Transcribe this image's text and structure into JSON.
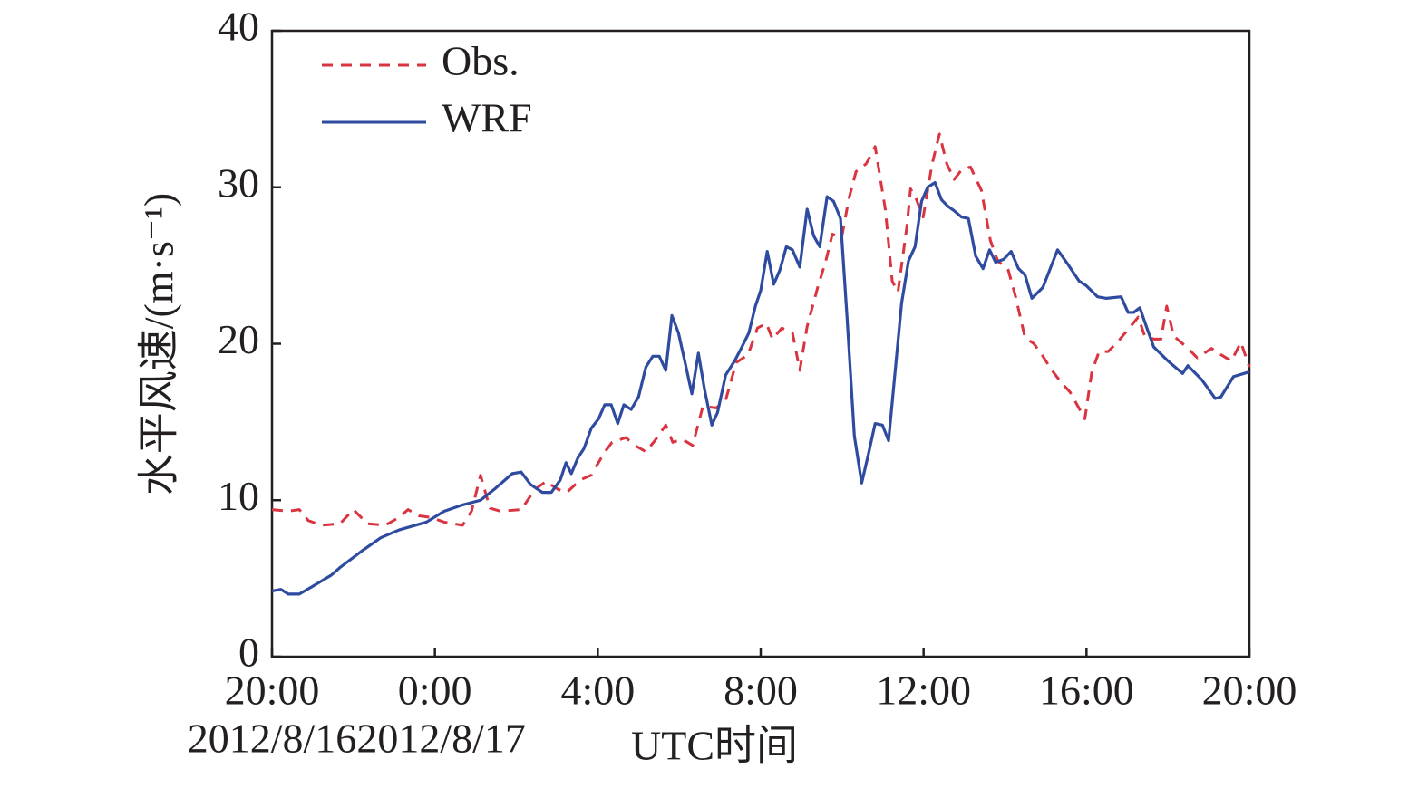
{
  "chart_data": {
    "type": "line",
    "ylabel": "水平风速/(m·s⁻¹)",
    "xlabel": "UTC时间",
    "xlim": [
      0,
      24
    ],
    "xticks": [
      {
        "value": 0,
        "label": "20:00"
      },
      {
        "value": 4,
        "label": "0:00"
      },
      {
        "value": 8,
        "label": "4:00"
      },
      {
        "value": 12,
        "label": "8:00"
      },
      {
        "value": 16,
        "label": "12:00"
      },
      {
        "value": 20,
        "label": "16:00"
      },
      {
        "value": 24,
        "label": "20:00"
      }
    ],
    "xdates": [
      {
        "value": 0,
        "label": "2012/8/16"
      },
      {
        "value": 4,
        "label": "2012/8/17"
      }
    ],
    "ylim": [
      0,
      40
    ],
    "yticks": [
      0,
      10,
      20,
      30,
      40
    ],
    "legend": "upper left",
    "series": [
      {
        "name": "Obs.",
        "color": "#d9343f",
        "dash": true,
        "x": [
          0,
          0.4,
          0.67,
          0.89,
          1.22,
          1.67,
          2.0,
          2.34,
          2.78,
          3.12,
          3.34,
          3.61,
          3.9,
          4.23,
          4.68,
          4.9,
          5.12,
          5.35,
          5.61,
          6.12,
          6.46,
          6.73,
          7.02,
          7.24,
          7.57,
          7.84,
          8.15,
          8.35,
          8.69,
          8.91,
          9.18,
          9.4,
          9.67,
          9.84,
          10.07,
          10.33,
          10.58,
          10.91,
          11.14,
          11.4,
          11.69,
          11.92,
          12.14,
          12.29,
          12.52,
          12.78,
          12.96,
          13.14,
          13.41,
          13.59,
          13.76,
          13.99,
          14.16,
          14.34,
          14.59,
          14.81,
          15.06,
          15.23,
          15.37,
          15.59,
          15.68,
          15.81,
          15.99,
          16.21,
          16.39,
          16.57,
          16.75,
          16.93,
          17.15,
          17.42,
          17.64,
          17.82,
          18.08,
          18.26,
          18.49,
          18.71,
          18.93,
          19.15,
          19.42,
          19.6,
          19.96,
          20.13,
          20.31,
          20.53,
          20.76,
          21.05,
          21.27,
          21.43,
          21.65,
          21.83,
          21.97,
          22.14,
          22.45,
          22.72,
          23.07,
          23.3,
          23.56,
          23.79,
          24
        ],
        "values": [
          9.4,
          9.3,
          9.4,
          8.7,
          8.4,
          8.5,
          9.4,
          8.5,
          8.4,
          8.9,
          9.4,
          9.0,
          8.9,
          8.6,
          8.4,
          9.3,
          11.6,
          9.5,
          9.3,
          9.4,
          10.7,
          11.2,
          10.7,
          10.5,
          11.3,
          11.6,
          13.0,
          13.7,
          14.0,
          13.5,
          13.1,
          13.8,
          14.8,
          13.7,
          13.9,
          13.5,
          16.0,
          15.9,
          16.4,
          18.8,
          19.3,
          21.0,
          21.3,
          20.3,
          21.0,
          20.7,
          18.3,
          21.1,
          23.7,
          25.2,
          27.0,
          26.8,
          29.2,
          31.0,
          31.5,
          32.6,
          28.6,
          24.0,
          23.3,
          27.5,
          29.9,
          29.3,
          28.1,
          31.5,
          33.4,
          31.5,
          30.5,
          31.1,
          31.3,
          29.8,
          26.6,
          25.3,
          24.7,
          23.0,
          20.4,
          20.0,
          19.2,
          18.3,
          17.4,
          16.9,
          15.2,
          18.2,
          19.5,
          19.5,
          20.1,
          21.0,
          21.7,
          20.5,
          20.3,
          20.3,
          22.4,
          20.5,
          19.8,
          19.1,
          19.7,
          19.3,
          18.9,
          20.1,
          18.5
        ]
      },
      {
        "name": "WRF",
        "color": "#2e4ba0",
        "dash": false,
        "x": [
          0,
          0.22,
          0.4,
          0.67,
          1.0,
          1.45,
          1.67,
          2.23,
          2.67,
          3.12,
          3.79,
          4.23,
          4.68,
          5.12,
          5.46,
          5.9,
          6.12,
          6.35,
          6.64,
          6.86,
          7.08,
          7.22,
          7.35,
          7.51,
          7.66,
          7.84,
          8.02,
          8.17,
          8.33,
          8.49,
          8.64,
          8.82,
          9.0,
          9.18,
          9.35,
          9.51,
          9.67,
          9.82,
          9.98,
          10.16,
          10.31,
          10.47,
          10.62,
          10.8,
          10.94,
          11.14,
          11.36,
          11.54,
          11.71,
          11.87,
          12.0,
          12.16,
          12.32,
          12.47,
          12.63,
          12.78,
          12.96,
          13.14,
          13.3,
          13.45,
          13.63,
          13.79,
          13.96,
          14.12,
          14.3,
          14.48,
          14.65,
          14.81,
          14.99,
          15.14,
          15.3,
          15.46,
          15.63,
          15.79,
          15.95,
          16.1,
          16.28,
          16.44,
          16.59,
          16.75,
          16.93,
          17.1,
          17.28,
          17.46,
          17.62,
          17.77,
          17.97,
          18.15,
          18.33,
          18.49,
          18.66,
          18.93,
          19.29,
          19.51,
          19.82,
          20.0,
          20.27,
          20.49,
          20.85,
          21.02,
          21.16,
          21.31,
          21.47,
          21.65,
          22.0,
          22.36,
          22.49,
          22.83,
          23.16,
          23.3,
          23.61,
          24
        ],
        "values": [
          4.2,
          4.3,
          4.0,
          4.0,
          4.5,
          5.2,
          5.7,
          6.8,
          7.6,
          8.1,
          8.6,
          9.3,
          9.7,
          10.0,
          10.7,
          11.7,
          11.8,
          11.0,
          10.5,
          10.5,
          11.3,
          12.4,
          11.7,
          12.7,
          13.3,
          14.6,
          15.2,
          16.1,
          16.1,
          14.9,
          16.1,
          15.8,
          16.6,
          18.5,
          19.2,
          19.2,
          18.3,
          21.8,
          20.7,
          18.6,
          16.8,
          19.4,
          17.1,
          14.8,
          15.6,
          18.0,
          18.9,
          19.8,
          20.7,
          22.4,
          23.4,
          25.9,
          23.8,
          24.7,
          26.2,
          26.0,
          24.9,
          28.6,
          26.9,
          26.2,
          29.4,
          29.1,
          28.0,
          21.7,
          14.1,
          11.1,
          13.0,
          14.9,
          14.8,
          13.8,
          18.2,
          22.6,
          25.3,
          26.2,
          29.1,
          30.0,
          30.3,
          29.2,
          28.8,
          28.5,
          28.1,
          28.0,
          25.6,
          24.8,
          26.0,
          25.2,
          25.4,
          25.9,
          24.8,
          24.4,
          22.9,
          23.6,
          26.0,
          25.2,
          24.0,
          23.7,
          23.0,
          22.9,
          23.0,
          22.0,
          22.0,
          22.3,
          21.1,
          19.8,
          18.9,
          18.1,
          18.6,
          17.7,
          16.5,
          16.6,
          17.9,
          18.2
        ]
      }
    ]
  }
}
